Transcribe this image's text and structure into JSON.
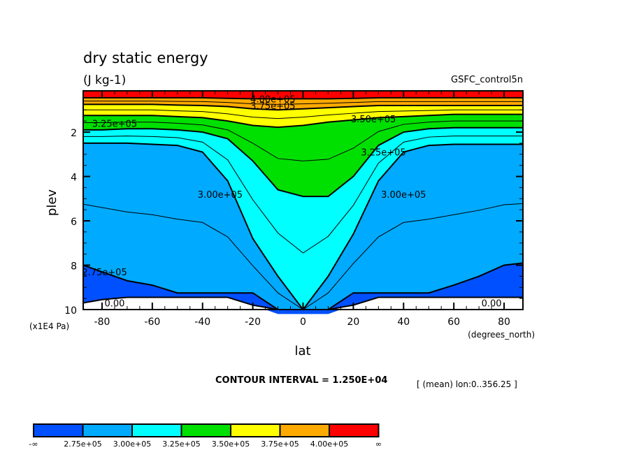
{
  "chart_data": {
    "type": "contour",
    "title": "dry static energy",
    "units": "(J kg-1)",
    "dataset": "GSFC_control5n",
    "xlabel": "lat",
    "xunits": "(degrees_north)",
    "ylabel": "plev",
    "yunits": "(x1E4 Pa)",
    "xlim": [
      -87.5,
      87.5
    ],
    "ylim": [
      10,
      0.14
    ],
    "y_inverted": true,
    "xticks": [
      -80,
      -60,
      -40,
      -20,
      0,
      20,
      40,
      60,
      80
    ],
    "xtick_labels": [
      "-80",
      "-60",
      "-40",
      "-20",
      "0",
      "20",
      "40",
      "60",
      "80"
    ],
    "yticks": [
      2,
      4,
      6,
      8,
      10
    ],
    "ytick_labels": [
      "2",
      "4",
      "6",
      "8",
      "10"
    ],
    "contour_interval_text": "CONTOUR INTERVAL = 1.250E+04",
    "mean_note": "[ (mean) lon:0..356.25 ]",
    "levels": [
      275000,
      300000,
      325000,
      350000,
      375000,
      400000
    ],
    "colorbar": {
      "colors": [
        "#0050ff",
        "#00aaff",
        "#00ffff",
        "#00e000",
        "#ffff00",
        "#ffaa00",
        "#ff0000"
      ],
      "labels": [
        "-∞",
        "2.75e+05",
        "3.00e+05",
        "3.25e+05",
        "3.50e+05",
        "3.75e+05",
        "4.00e+05",
        "∞"
      ]
    },
    "contour_labels": [
      {
        "text": "4.00e+05",
        "lat": -12,
        "plev": 0.5
      },
      {
        "text": "3.75e+05",
        "lat": -12,
        "plev": 0.8
      },
      {
        "text": "3.50e+05",
        "lat": 28,
        "plev": 1.4
      },
      {
        "text": "3.25e+05",
        "lat": -75,
        "plev": 1.6
      },
      {
        "text": "3.25e+05",
        "lat": 32,
        "plev": 2.9
      },
      {
        "text": "3.00e+05",
        "lat": -33,
        "plev": 4.8
      },
      {
        "text": "3.00e+05",
        "lat": 40,
        "plev": 4.8
      },
      {
        "text": "2.75e+05",
        "lat": -79,
        "plev": 8.3
      },
      {
        "text": "0.00",
        "lat": -75,
        "plev": 9.7
      },
      {
        "text": "0.00",
        "lat": 75,
        "plev": 9.7
      }
    ]
  }
}
